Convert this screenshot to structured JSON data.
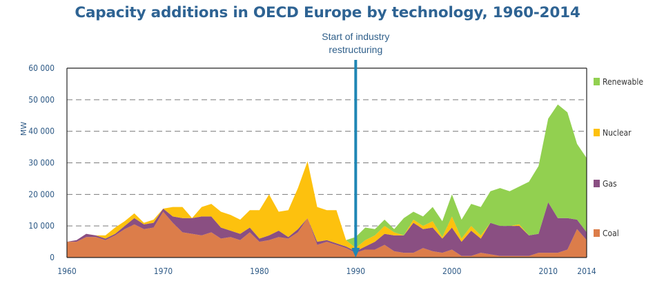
{
  "chart_data": {
    "type": "area",
    "stacked": true,
    "title": "Capacity additions in OECD Europe by technology, 1960-2014",
    "ylabel": "MW",
    "xlabel": "",
    "xlim": [
      1960,
      2014
    ],
    "ylim": [
      0,
      60000
    ],
    "y_ticks": [
      "0",
      "10 000",
      "20 000",
      "30 000",
      "40 000",
      "50 000",
      "60 000"
    ],
    "x_ticks": [
      "1960",
      "1970",
      "1980",
      "1990",
      "2000",
      "2010",
      "2014"
    ],
    "grid": "horizontal dashed",
    "legend": "right",
    "annotation": {
      "text": "Start of industry restructuring",
      "lines": [
        "Start of industry",
        "restructuring"
      ],
      "x": 1990
    },
    "x": [
      1960,
      1961,
      1962,
      1963,
      1964,
      1965,
      1966,
      1967,
      1968,
      1969,
      1970,
      1971,
      1972,
      1973,
      1974,
      1975,
      1976,
      1977,
      1978,
      1979,
      1980,
      1981,
      1982,
      1983,
      1984,
      1985,
      1986,
      1987,
      1988,
      1989,
      1990,
      1991,
      1992,
      1993,
      1994,
      1995,
      1996,
      1997,
      1998,
      1999,
      2000,
      2001,
      2002,
      2003,
      2004,
      2005,
      2006,
      2007,
      2008,
      2009,
      2010,
      2011,
      2012,
      2013,
      2014
    ],
    "series": [
      {
        "name": "Coal",
        "color": "#dc7d4a",
        "values": [
          5000,
          5000,
          6500,
          6500,
          5500,
          7000,
          9000,
          10500,
          9000,
          9500,
          14500,
          11000,
          8000,
          7500,
          7000,
          8000,
          6000,
          6500,
          5500,
          8000,
          5000,
          5500,
          6500,
          6000,
          8000,
          12500,
          4000,
          5000,
          4000,
          3000,
          1500,
          2500,
          2500,
          4000,
          2000,
          1500,
          1500,
          3000,
          2000,
          1500,
          2500,
          500,
          500,
          1500,
          1000,
          500,
          500,
          500,
          500,
          1500,
          1500,
          1500,
          2500,
          9000,
          5500
        ]
      },
      {
        "name": "Gas",
        "color": "#8a4f82",
        "values": [
          0,
          500,
          1000,
          500,
          500,
          500,
          1000,
          2000,
          1500,
          1500,
          1000,
          2000,
          4500,
          5000,
          6000,
          5000,
          3500,
          2000,
          2000,
          1500,
          1000,
          1500,
          2000,
          500,
          1000,
          0,
          1000,
          500,
          500,
          500,
          500,
          1000,
          2500,
          3500,
          5000,
          5500,
          9500,
          6000,
          7500,
          4500,
          7000,
          4500,
          8000,
          4500,
          10000,
          9500,
          9500,
          9500,
          6500,
          6000,
          16000,
          11000,
          10000,
          3000,
          2500
        ]
      },
      {
        "name": "Nuclear",
        "color": "#fdc10e",
        "values": [
          0,
          0,
          0,
          0,
          1000,
          2000,
          1500,
          1500,
          500,
          1000,
          0,
          3000,
          3500,
          0,
          3000,
          4000,
          5000,
          5000,
          4500,
          5500,
          9000,
          13000,
          6000,
          8500,
          13000,
          18000,
          11000,
          9500,
          10500,
          2000,
          1000,
          2000,
          2000,
          2500,
          1000,
          0,
          1000,
          1000,
          2000,
          500,
          3500,
          1000,
          1500,
          1000,
          0,
          0,
          0,
          500,
          0,
          0,
          0,
          0,
          0,
          0,
          0
        ]
      },
      {
        "name": "Renewable",
        "color": "#92d050",
        "values": [
          0,
          0,
          0,
          0,
          0,
          0,
          0,
          0,
          0,
          0,
          0,
          0,
          0,
          0,
          0,
          0,
          0,
          0,
          0,
          0,
          0,
          0,
          0,
          0,
          0,
          0,
          0,
          0,
          0,
          0,
          3500,
          4000,
          2000,
          2000,
          1000,
          5500,
          2500,
          3000,
          4500,
          5000,
          7000,
          6000,
          7000,
          9000,
          10000,
          12000,
          11000,
          12000,
          17000,
          21500,
          26500,
          36000,
          33500,
          24000,
          23500
        ]
      }
    ]
  }
}
